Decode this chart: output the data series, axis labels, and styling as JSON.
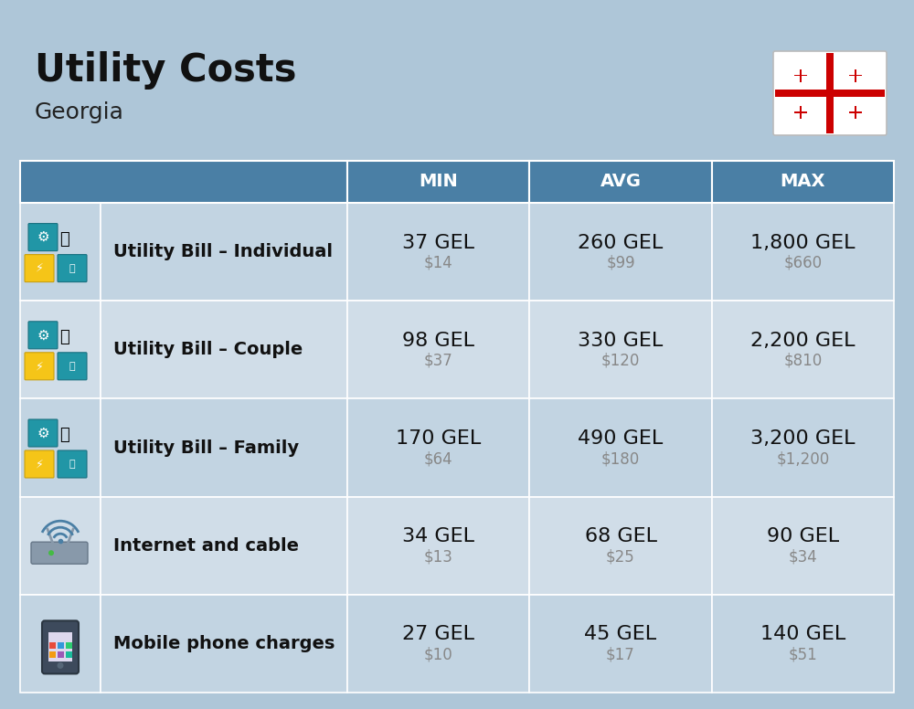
{
  "title": "Utility Costs",
  "subtitle": "Georgia",
  "background_color": "#aec6d8",
  "header_color": "#4a7fa5",
  "header_text_color": "#ffffff",
  "row_colors": [
    "#c2d4e2",
    "#d0dde8"
  ],
  "col_headers": [
    "MIN",
    "AVG",
    "MAX"
  ],
  "rows": [
    {
      "label": "Utility Bill – Individual",
      "icon": "utility",
      "min_gel": "37 GEL",
      "min_usd": "$14",
      "avg_gel": "260 GEL",
      "avg_usd": "$99",
      "max_gel": "1,800 GEL",
      "max_usd": "$660"
    },
    {
      "label": "Utility Bill – Couple",
      "icon": "utility",
      "min_gel": "98 GEL",
      "min_usd": "$37",
      "avg_gel": "330 GEL",
      "avg_usd": "$120",
      "max_gel": "2,200 GEL",
      "max_usd": "$810"
    },
    {
      "label": "Utility Bill – Family",
      "icon": "utility",
      "min_gel": "170 GEL",
      "min_usd": "$64",
      "avg_gel": "490 GEL",
      "avg_usd": "$180",
      "max_gel": "3,200 GEL",
      "max_usd": "$1,200"
    },
    {
      "label": "Internet and cable",
      "icon": "internet",
      "min_gel": "34 GEL",
      "min_usd": "$13",
      "avg_gel": "68 GEL",
      "avg_usd": "$25",
      "max_gel": "90 GEL",
      "max_usd": "$34"
    },
    {
      "label": "Mobile phone charges",
      "icon": "mobile",
      "min_gel": "27 GEL",
      "min_usd": "$10",
      "avg_gel": "45 GEL",
      "avg_usd": "$17",
      "max_gel": "140 GEL",
      "max_usd": "$51"
    }
  ],
  "title_fontsize": 30,
  "subtitle_fontsize": 18,
  "header_fontsize": 14,
  "label_fontsize": 14,
  "gel_fontsize": 16,
  "usd_fontsize": 12,
  "flag_cross_color": "#CC0000"
}
